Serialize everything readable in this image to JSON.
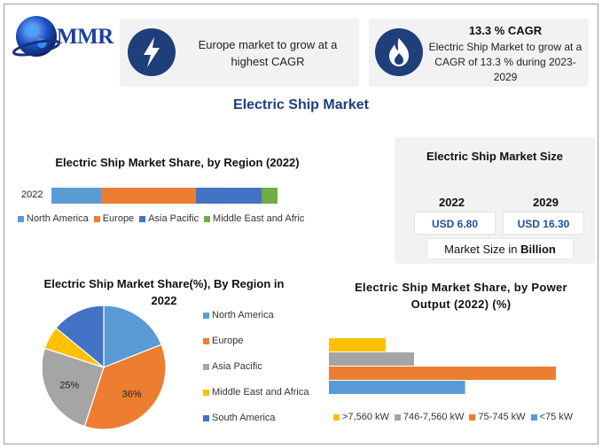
{
  "logo": {
    "text": "MMR",
    "icon": "globe-icon"
  },
  "highlights": [
    {
      "icon": "lightning-icon",
      "text": "Europe market to grow at a highest CAGR"
    },
    {
      "icon": "flame-icon",
      "title": "13.3 % CAGR",
      "text": "Electric Ship Market to grow at a CAGR of 13.3 % during 2023-2029"
    }
  ],
  "main_title": "Electric Ship Market",
  "market_size": {
    "title": "Electric Ship Market Size",
    "years": [
      "2022",
      "2029"
    ],
    "values": [
      "USD 6.80",
      "USD 16.30"
    ],
    "unit_prefix": "Market Size in ",
    "unit_bold": "Billion"
  },
  "colors": {
    "north_america": "#5b9bd5",
    "europe": "#ed7d31",
    "asia_pacific": "#a5a5a5",
    "middle_east": "#ffc000",
    "south_america": "#4472c4",
    "mea_green": "#70ad47",
    "navy": "#1f3f7a"
  },
  "chart_data": [
    {
      "type": "bar",
      "orientation": "horizontal-stacked",
      "title": "Electric Ship Market Share, by Region (2022)",
      "categories": [
        "2022"
      ],
      "series": [
        {
          "name": "North America",
          "values": [
            22
          ],
          "color": "#5b9bd5"
        },
        {
          "name": "Europe",
          "values": [
            42
          ],
          "color": "#ed7d31"
        },
        {
          "name": "Asia Pacific",
          "values": [
            29
          ],
          "color": "#4472c4"
        },
        {
          "name": "Middle East and Afric",
          "values": [
            7
          ],
          "color": "#70ad47"
        }
      ],
      "xlim": [
        0,
        100
      ],
      "legend": "bottom"
    },
    {
      "type": "pie",
      "title": "Electric Ship Market Share(%), By Region in 2022",
      "labels": [
        "North America",
        "Europe",
        "Asia Pacific",
        "Middle East and Africa",
        "South America"
      ],
      "values": [
        19,
        36,
        25,
        6,
        14
      ],
      "data_labels": [
        "",
        "36%",
        "25%",
        "",
        ""
      ],
      "colors": [
        "#5b9bd5",
        "#ed7d31",
        "#a5a5a5",
        "#ffc000",
        "#4472c4"
      ],
      "legend": "right"
    },
    {
      "type": "bar",
      "orientation": "horizontal",
      "title": "Electric Ship Market Share, by Power Output (2022) (%)",
      "series": [
        {
          "name": ">7,560 kW",
          "values": [
            20
          ],
          "color": "#ffc000"
        },
        {
          "name": "746-7,560 kW",
          "values": [
            30
          ],
          "color": "#a5a5a5"
        },
        {
          "name": "75-745 kW",
          "values": [
            80
          ],
          "color": "#ed7d31"
        },
        {
          "name": "<75 kW",
          "values": [
            48
          ],
          "color": "#5b9bd5"
        }
      ],
      "xlim": [
        0,
        100
      ],
      "legend": "bottom"
    }
  ]
}
